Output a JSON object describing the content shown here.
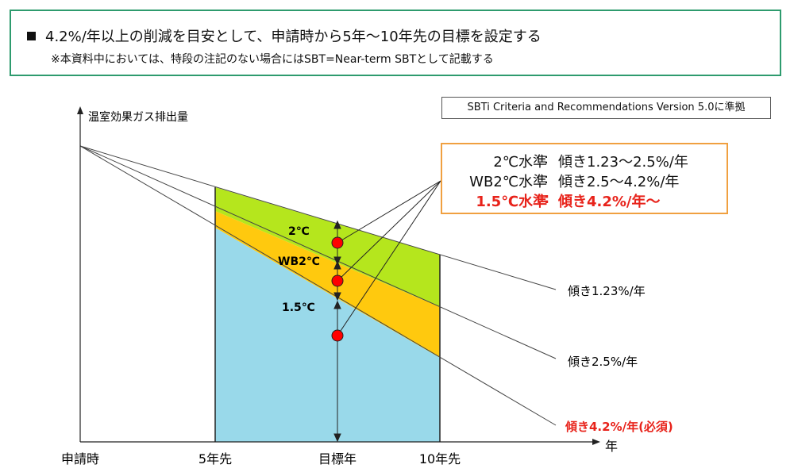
{
  "header": {
    "line1": "4.2%/年以上の削減を目安として、申請時から5年～10年先の目標を設定する",
    "line2": "※本資料中においては、特段の注記のない場合にはSBT=Near-term SBTとして記載する"
  },
  "source": "SBTi Criteria and Recommendations Version 5.0に準拠",
  "legend": [
    {
      "label": "2℃水準",
      "colon": ":",
      "value": "傾き1.23～2.5%/年",
      "required": false
    },
    {
      "label": "WB2℃水準",
      "colon": ":",
      "value": "傾き2.5～4.2%/年",
      "required": false
    },
    {
      "label": "1.5℃水準",
      "colon": ":",
      "value": "傾き4.2%/年～",
      "required": true
    }
  ],
  "axes": {
    "y_label": "温室効果ガス排出量",
    "x_label": "年",
    "x_ticks": [
      "申請時",
      "5年先",
      "目標年",
      "10年先"
    ]
  },
  "lines": [
    {
      "label": "傾き1.23%/年",
      "slope_pct_per_year": 1.23,
      "required": false
    },
    {
      "label": "傾き2.5%/年",
      "slope_pct_per_year": 2.5,
      "required": false
    },
    {
      "label": "傾き4.2%/年(必須)",
      "slope_pct_per_year": 4.2,
      "required": true
    }
  ],
  "zones": [
    {
      "label": "2℃",
      "color": "#b5e61d"
    },
    {
      "label": "WB2℃",
      "color": "#ffc90e"
    },
    {
      "label": "1.5℃",
      "color": "#99d9ea"
    }
  ],
  "colors": {
    "accent_red": "#e8231b",
    "marker_red": "#ff0000",
    "header_border": "#2e9b6e",
    "legend_border": "#f0a040"
  }
}
